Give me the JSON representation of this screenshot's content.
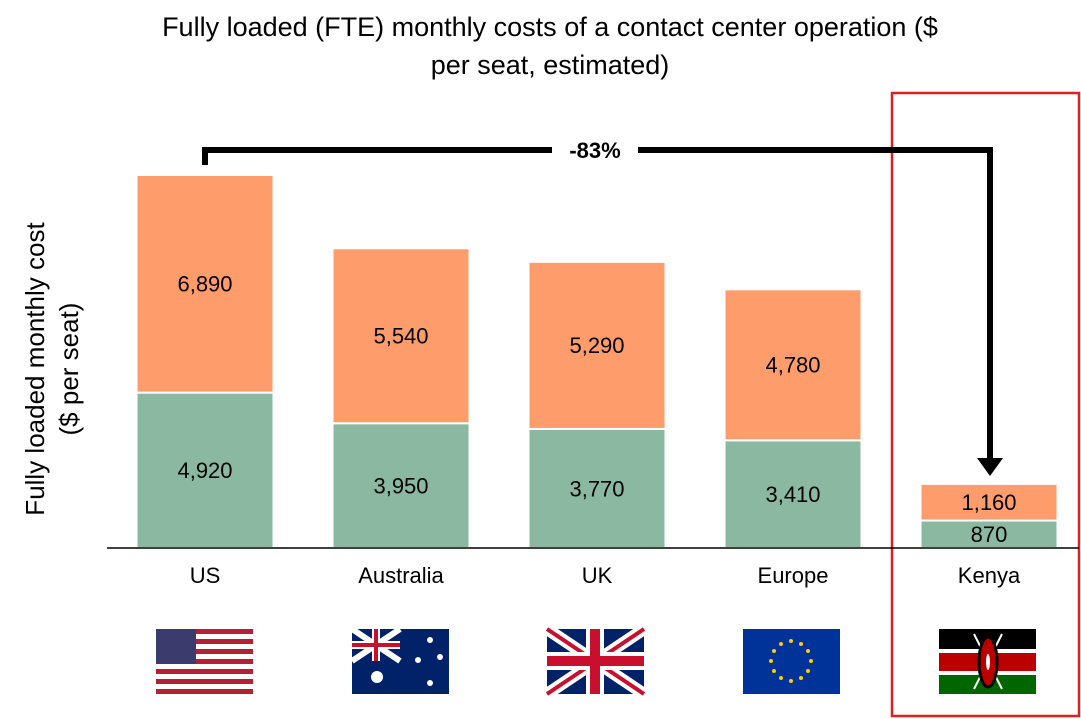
{
  "chart_data": {
    "type": "stacked-bar",
    "title": "Fully loaded (FTE) monthly costs of a contact center operation ($ per seat, estimated)",
    "ylabel": "Fully loaded monthly cost ($ per seat)",
    "annotation": "-83%",
    "categories": [
      "US",
      "Australia",
      "UK",
      "Europe",
      "Kenya"
    ],
    "series": [
      {
        "color": "#8bb8a0",
        "values": [
          4920,
          3950,
          3770,
          3410,
          870
        ],
        "value_labels": [
          "4,920",
          "3,950",
          "3,770",
          "3,410",
          "870"
        ]
      },
      {
        "color": "#ff9c6b",
        "values": [
          6890,
          5540,
          5290,
          4780,
          1160
        ],
        "value_labels": [
          "6,890",
          "5,540",
          "5,290",
          "4,780",
          "1,160"
        ]
      }
    ],
    "ylim": [
      0,
      12000
    ]
  }
}
